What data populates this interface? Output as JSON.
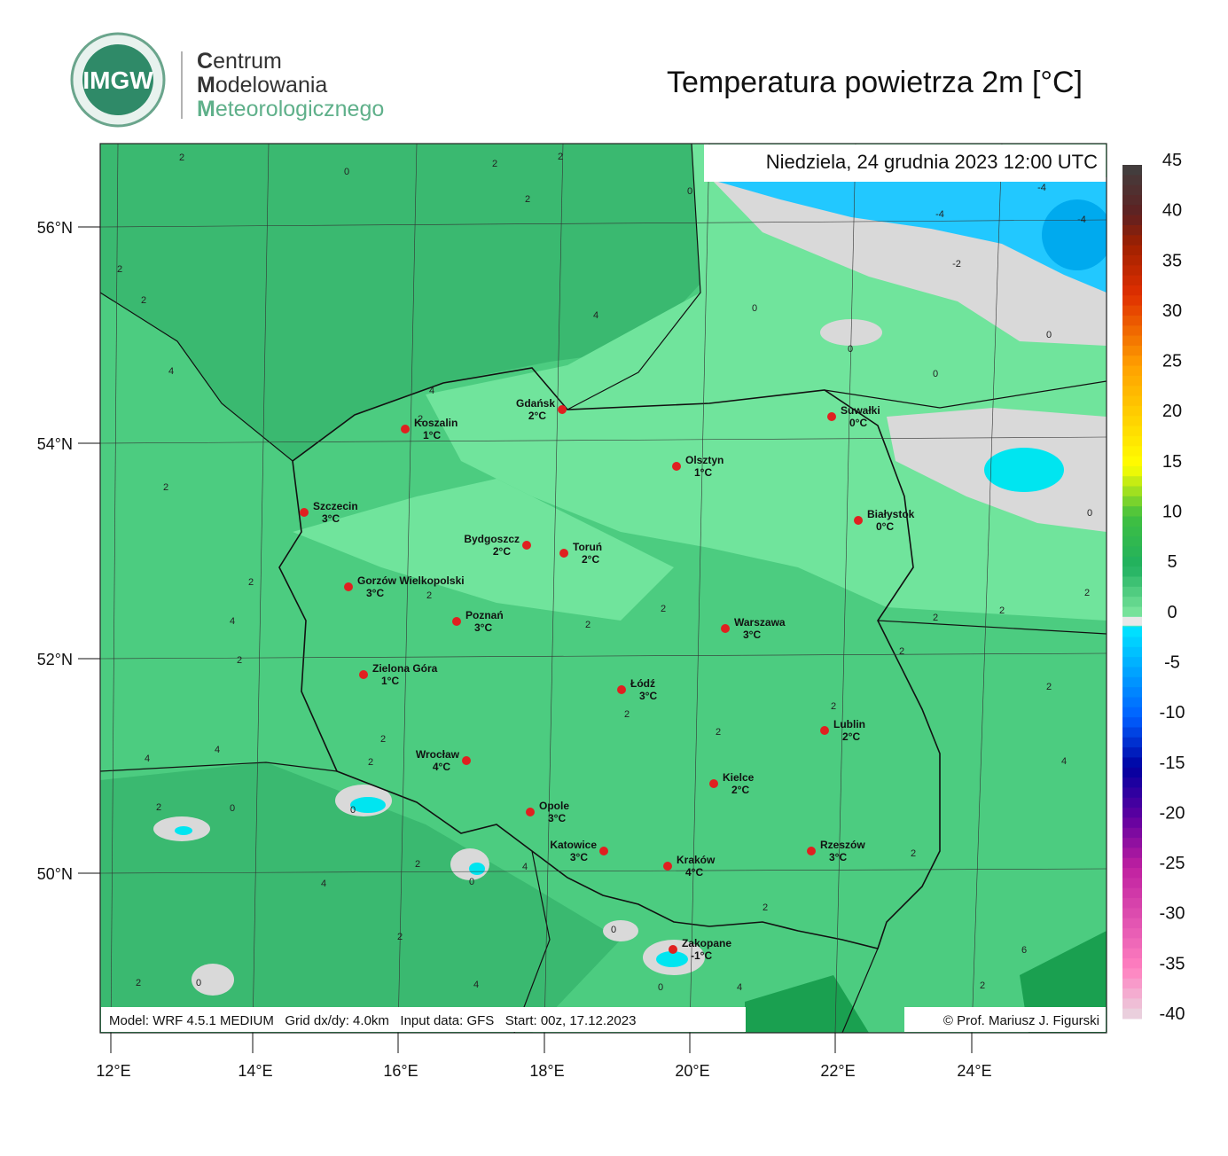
{
  "header": {
    "logo": "IMGW",
    "org": [
      "Centrum",
      "Modelowania",
      "Meteorologicznego"
    ],
    "title": "Temperatura powietrza 2m [°C]"
  },
  "map": {
    "date": "Niedziela, 24 grudnia 2023 12:00 UTC",
    "lat_labels": [
      "56°N",
      "54°N",
      "52°N",
      "50°N"
    ],
    "lon_labels": [
      "12°E",
      "14°E",
      "16°E",
      "18°E",
      "20°E",
      "22°E",
      "24°E"
    ],
    "cities": [
      {
        "name": "Koszalin",
        "temp": "1°C"
      },
      {
        "name": "Gdańsk",
        "temp": "2°C"
      },
      {
        "name": "Suwałki",
        "temp": "0°C"
      },
      {
        "name": "Olsztyn",
        "temp": "1°C"
      },
      {
        "name": "Szczecin",
        "temp": "3°C"
      },
      {
        "name": "Białystok",
        "temp": "0°C"
      },
      {
        "name": "Bydgoszcz",
        "temp": "2°C"
      },
      {
        "name": "Toruń",
        "temp": "2°C"
      },
      {
        "name": "Gorzów Wielkopolski",
        "temp": "3°C"
      },
      {
        "name": "Poznań",
        "temp": "3°C"
      },
      {
        "name": "Warszawa",
        "temp": "3°C"
      },
      {
        "name": "Zielona Góra",
        "temp": "1°C"
      },
      {
        "name": "Łódź",
        "temp": "3°C"
      },
      {
        "name": "Lublin",
        "temp": "2°C"
      },
      {
        "name": "Wrocław",
        "temp": "4°C"
      },
      {
        "name": "Kielce",
        "temp": "2°C"
      },
      {
        "name": "Opole",
        "temp": "3°C"
      },
      {
        "name": "Katowice",
        "temp": "3°C"
      },
      {
        "name": "Rzeszów",
        "temp": "3°C"
      },
      {
        "name": "Kraków",
        "temp": "4°C"
      },
      {
        "name": "Zakopane",
        "temp": "-1°C"
      }
    ],
    "contour_labels": [
      "2",
      "0",
      "2",
      "2",
      "2",
      "4",
      "2",
      "2",
      "4",
      "2",
      "2",
      "4",
      "2",
      "2",
      "2",
      "2",
      "2",
      "2",
      "2",
      "4",
      "4",
      "2",
      "2",
      "2",
      "0",
      "0",
      "2",
      "0",
      "4",
      "4",
      "2",
      "0",
      "2",
      "4",
      "0",
      "0",
      "4",
      "2",
      "6",
      "2",
      "4",
      "2",
      "2",
      "2",
      "2",
      "0",
      "0",
      "0",
      "0",
      "0",
      "-2",
      "-4",
      "-4",
      "-4",
      "2",
      "4",
      "0",
      "2",
      "2"
    ]
  },
  "footer": {
    "model": "Model: WRF 4.5.1 MEDIUM   Grid dx/dy: 4.0km   Input data: GFS   Start: 00z, 17.12.2023",
    "credit": "© Prof. Mariusz J. Figurski"
  },
  "colorbar": {
    "ticks": [
      45,
      40,
      35,
      30,
      25,
      20,
      15,
      10,
      5,
      0,
      -5,
      -10,
      -15,
      -20,
      -25,
      -30,
      -35,
      -40
    ]
  }
}
